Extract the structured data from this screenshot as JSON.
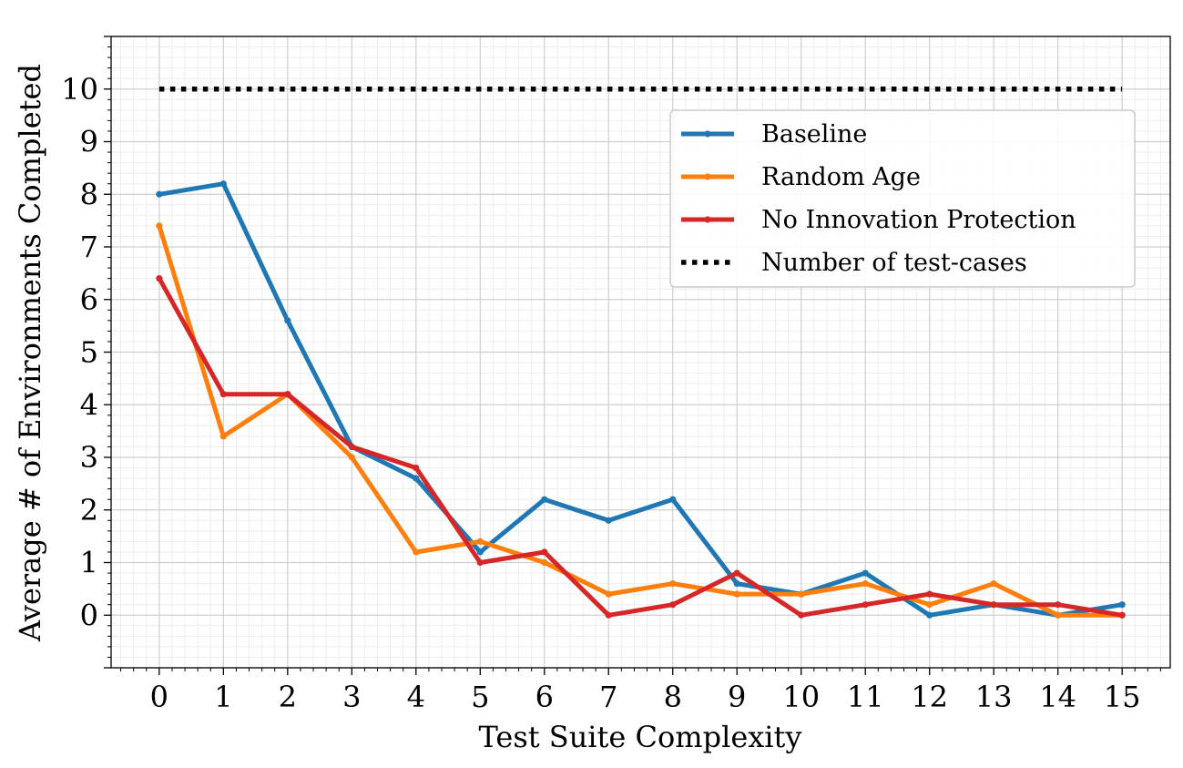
{
  "chart_data": {
    "type": "line",
    "xlabel": "Test Suite Complexity",
    "ylabel": "Average # of Environments Completed",
    "xlim": [
      -0.75,
      15.75
    ],
    "ylim": [
      -1,
      11
    ],
    "xticks": [
      "0",
      "1",
      "2",
      "3",
      "4",
      "5",
      "6",
      "7",
      "8",
      "9",
      "10",
      "11",
      "12",
      "13",
      "14",
      "15"
    ],
    "yticks": [
      "0",
      "1",
      "2",
      "3",
      "4",
      "5",
      "6",
      "7",
      "8",
      "9",
      "10"
    ],
    "grid": "major and minor",
    "legend_position": "upper-right",
    "x": [
      0,
      1,
      2,
      3,
      4,
      5,
      6,
      7,
      8,
      9,
      10,
      11,
      12,
      13,
      14,
      15
    ],
    "series": [
      {
        "name": "Baseline",
        "color": "#1f77b4",
        "style": "solid-dot",
        "values": [
          8.0,
          8.2,
          5.6,
          3.2,
          2.6,
          1.2,
          2.2,
          1.8,
          2.2,
          0.6,
          0.4,
          0.8,
          0.0,
          0.2,
          0.0,
          0.2
        ]
      },
      {
        "name": "Random Age",
        "color": "#ff7f0e",
        "style": "solid-dot",
        "values": [
          7.4,
          3.4,
          4.2,
          3.0,
          1.2,
          1.4,
          1.0,
          0.4,
          0.6,
          0.4,
          0.4,
          0.6,
          0.2,
          0.6,
          0.0,
          0.0
        ]
      },
      {
        "name": "No Innovation Protection",
        "color": "#d62728",
        "style": "solid-dot",
        "values": [
          6.4,
          4.2,
          4.2,
          3.2,
          2.8,
          1.0,
          1.2,
          0.0,
          0.2,
          0.8,
          0.0,
          0.2,
          0.4,
          0.2,
          0.2,
          0.0
        ]
      },
      {
        "name": "Number of test-cases",
        "color": "#000000",
        "style": "dotted",
        "values": [
          10,
          10,
          10,
          10,
          10,
          10,
          10,
          10,
          10,
          10,
          10,
          10,
          10,
          10,
          10,
          10
        ]
      }
    ]
  }
}
